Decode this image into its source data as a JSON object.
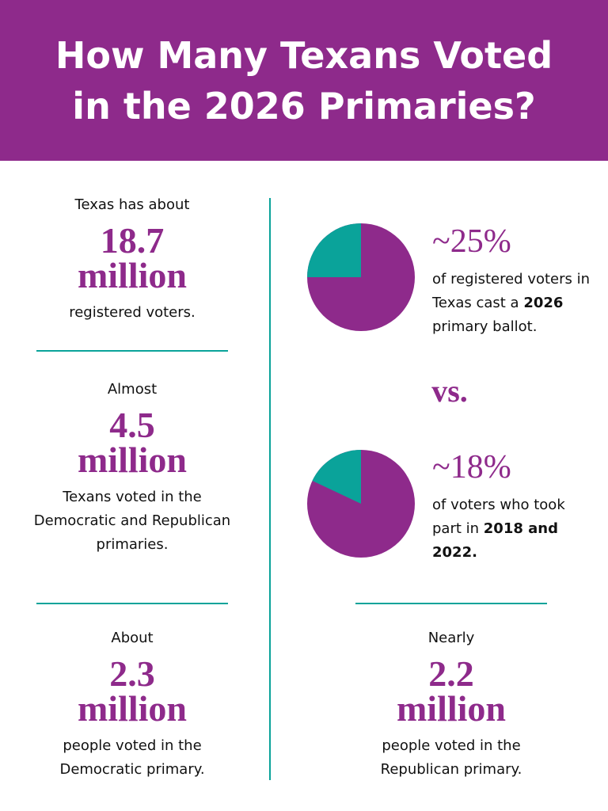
{
  "header": {
    "title": "How Many Texans Voted in the 2026 Primaries?"
  },
  "stats": [
    {
      "intro": "Texas has about",
      "number": 18.7,
      "unit": "million",
      "text": "registered voters."
    },
    {
      "intro": "Almost",
      "number": 4.5,
      "unit": "million",
      "text": "Texans voted in the Democratic and Republican primaries."
    },
    {
      "intro": "About",
      "number": 2.3,
      "unit": "million",
      "text": "people voted in the Democratic primary."
    },
    {
      "intro": "Nearly",
      "number": 2.2,
      "unit": "million",
      "text": "people voted in the Republican primary."
    }
  ],
  "pies": [
    {
      "value": 25,
      "label": "~25%",
      "text": "of registered voters in Texas cast a",
      "bold": "2026",
      "after": "primary ballot.",
      "color": "#0aa39a",
      "base_color": "#8e2a8b"
    },
    {
      "value": 18,
      "label": "~18%",
      "text": "of voters who took part in",
      "bold": "2018 and 2022.",
      "color": "#0aa39a",
      "base_color": "#8e2a8b"
    }
  ],
  "vs": "vs."
}
